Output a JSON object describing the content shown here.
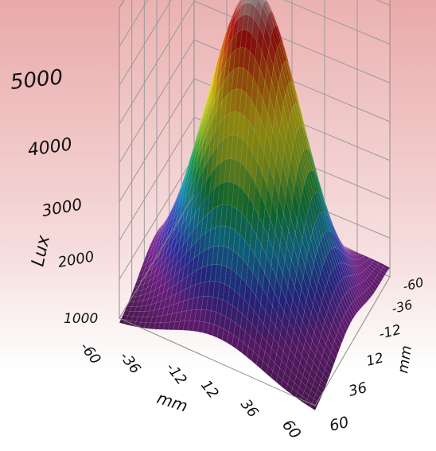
{
  "chart_data": {
    "type": "surface3d",
    "title": "",
    "xlabel": "mm",
    "ylabel": "mm",
    "zlabel": "Lux",
    "x_ticks": [
      "-60",
      "-36",
      "-12",
      "12",
      "36",
      "60"
    ],
    "y_ticks": [
      "-60",
      "-36",
      "-12",
      "12",
      "36",
      "60"
    ],
    "z_ticks": [
      "1000",
      "2000",
      "3000",
      "4000",
      "5000"
    ],
    "x_range": [
      -60,
      60
    ],
    "y_range": [
      -60,
      60
    ],
    "z_range": [
      1000,
      5000
    ],
    "peak": {
      "x": 0,
      "y": 0,
      "z": 5000
    },
    "z_min": 900,
    "grid": true,
    "colormap": [
      "#5a1f5e",
      "#8e2aa8",
      "#3b3fd8",
      "#18a8d8",
      "#19b24a",
      "#bfe02a",
      "#ffee1a",
      "#ff8a12",
      "#e81818",
      "#d8d8d8"
    ]
  }
}
